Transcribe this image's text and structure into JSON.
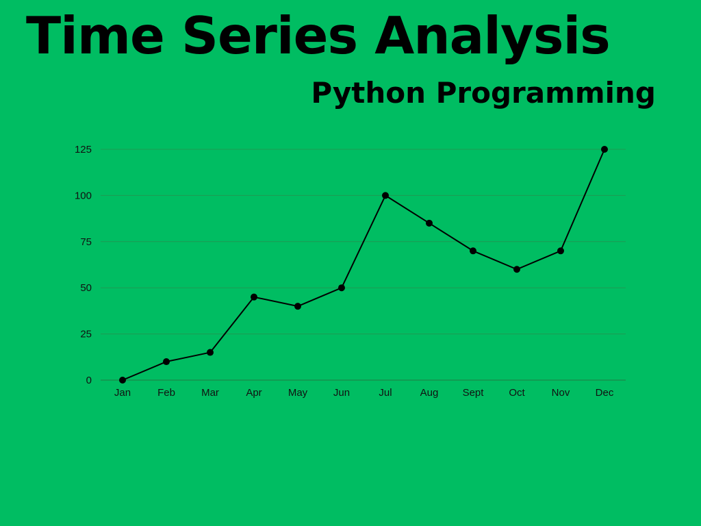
{
  "page": {
    "title": "Time Series Analysis",
    "subtitle": "Python Programming",
    "background": "#00bd62",
    "grid_color": "#1e9a52",
    "line_color": "#000000"
  },
  "chart_data": {
    "type": "line",
    "categories": [
      "Jan",
      "Feb",
      "Mar",
      "Apr",
      "May",
      "Jun",
      "Jul",
      "Aug",
      "Sept",
      "Oct",
      "Nov",
      "Dec"
    ],
    "series": [
      {
        "values": [
          0,
          10,
          15,
          45,
          40,
          50,
          100,
          85,
          70,
          60,
          70,
          125
        ]
      }
    ],
    "yticks": [
      0,
      25,
      50,
      75,
      100,
      125
    ],
    "ylim": [
      0,
      125
    ],
    "grid": true,
    "markers": true,
    "legend": "none",
    "xlabel": "",
    "ylabel": ""
  }
}
